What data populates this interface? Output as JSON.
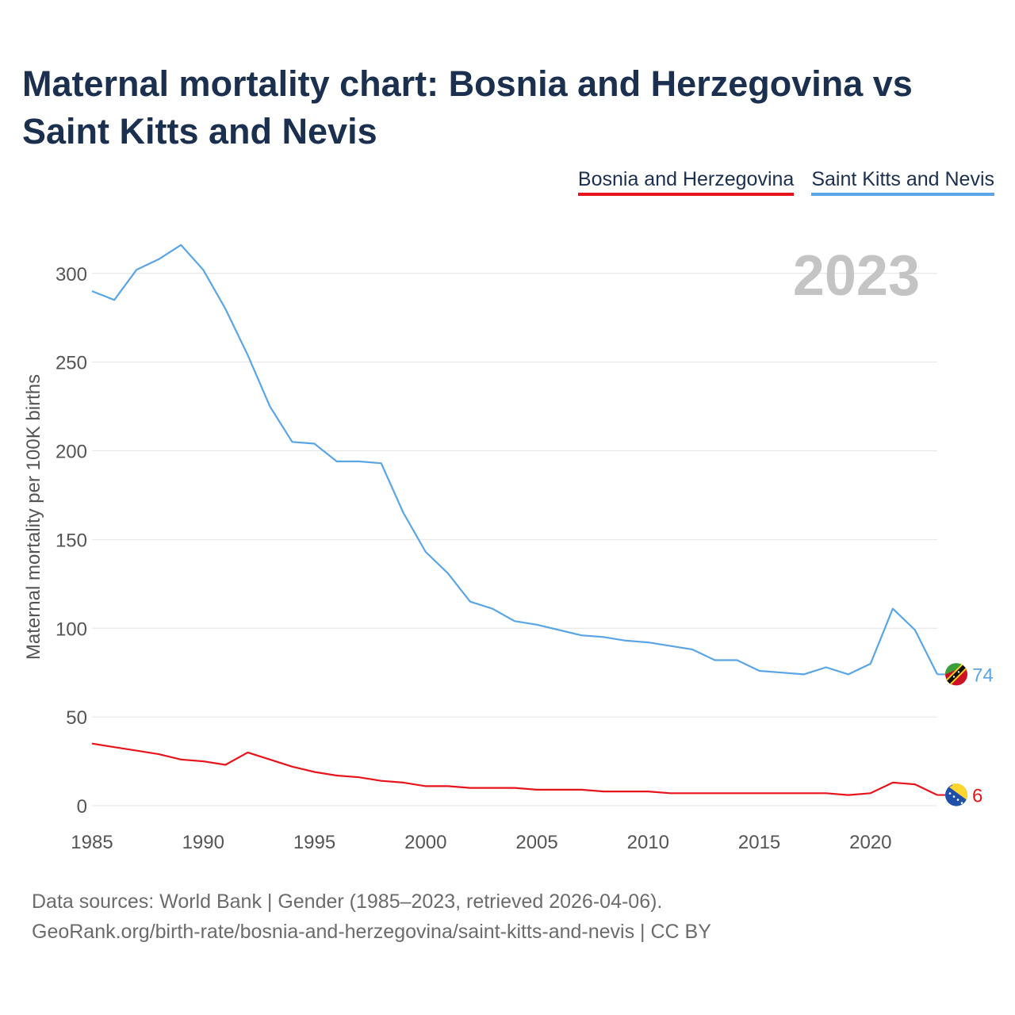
{
  "title": "Maternal mortality chart: Bosnia and Herzegovina vs Saint Kitts and Nevis",
  "year_label": "2023",
  "footer": {
    "line1": "Data sources: World Bank | Gender (1985–2023, retrieved 2026-04-06).",
    "line2": "GeoRank.org/birth-rate/bosnia-and-herzegovina/saint-kitts-and-nevis | CC BY"
  },
  "chart_data": {
    "type": "line",
    "title": "Maternal mortality chart: Bosnia and Herzegovina vs Saint Kitts and Nevis",
    "xlabel": "",
    "ylabel": "Maternal mortality per 100K births",
    "xlim": [
      1985,
      2023
    ],
    "ylim": [
      0,
      320
    ],
    "xticks": [
      1985,
      1990,
      1995,
      2000,
      2005,
      2010,
      2015,
      2020
    ],
    "yticks": [
      0,
      50,
      100,
      150,
      200,
      250,
      300
    ],
    "grid": true,
    "legend_position": "top-right",
    "x": [
      1985,
      1986,
      1987,
      1988,
      1989,
      1990,
      1991,
      1992,
      1993,
      1994,
      1995,
      1996,
      1997,
      1998,
      1999,
      2000,
      2001,
      2002,
      2003,
      2004,
      2005,
      2006,
      2007,
      2008,
      2009,
      2010,
      2011,
      2012,
      2013,
      2014,
      2015,
      2016,
      2017,
      2018,
      2019,
      2020,
      2021,
      2022,
      2023
    ],
    "series": [
      {
        "name": "Bosnia and Herzegovina",
        "color": "#e8141c",
        "end_label": "6",
        "values": [
          35,
          33,
          31,
          29,
          26,
          25,
          23,
          30,
          26,
          22,
          19,
          17,
          16,
          14,
          13,
          11,
          11,
          10,
          10,
          10,
          9,
          9,
          9,
          8,
          8,
          8,
          7,
          7,
          7,
          7,
          7,
          7,
          7,
          7,
          6,
          7,
          13,
          12,
          6
        ]
      },
      {
        "name": "Saint Kitts and Nevis",
        "color": "#5aa5e6",
        "end_label": "74",
        "values": [
          290,
          285,
          302,
          308,
          316,
          302,
          280,
          254,
          225,
          205,
          204,
          194,
          194,
          193,
          165,
          143,
          131,
          115,
          111,
          104,
          102,
          99,
          96,
          95,
          93,
          92,
          90,
          88,
          82,
          82,
          76,
          75,
          74,
          78,
          74,
          80,
          111,
          99,
          74
        ]
      }
    ]
  }
}
